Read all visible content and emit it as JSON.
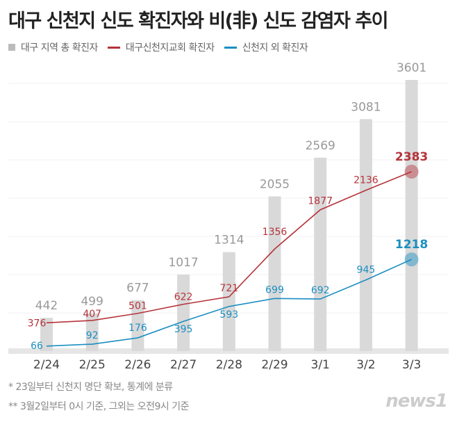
{
  "title": "대구 신천지 신도 확진자와 비(非) 신도 감염자 추이",
  "legend": [
    "대구 지역 총 확진자",
    "대구신천지교회 확진자",
    "신천지 외 확진자"
  ],
  "notes": [
    "* 23일부터 신천지 명단 확보, 통계에 분류",
    "** 3월2일부터 0시 기준, 그외는 오전9시 기준"
  ],
  "logo": "news1",
  "colors": {
    "bar": "#d9d9d9",
    "total_label": "#999999",
    "red": "#b5333a",
    "blue": "#1a8fc0"
  },
  "chart_data": {
    "type": "bar+line",
    "categories": [
      "2/24",
      "2/25",
      "2/26",
      "2/27",
      "2/28",
      "2/29",
      "3/1",
      "3/2",
      "3/3"
    ],
    "ylim": [
      0,
      3601
    ],
    "grid": true,
    "legend_placement": "top-left",
    "series": [
      {
        "name": "대구 지역 총 확진자",
        "type": "bar",
        "values": [
          442,
          499,
          677,
          1017,
          1314,
          2055,
          2569,
          3081,
          3601
        ]
      },
      {
        "name": "대구신천지교회 확진자",
        "type": "line",
        "values": [
          376,
          407,
          501,
          622,
          721,
          1356,
          1877,
          2136,
          2383
        ]
      },
      {
        "name": "신천지 외 확진자",
        "type": "line",
        "values": [
          66,
          92,
          176,
          395,
          593,
          699,
          692,
          945,
          1218
        ]
      }
    ]
  }
}
